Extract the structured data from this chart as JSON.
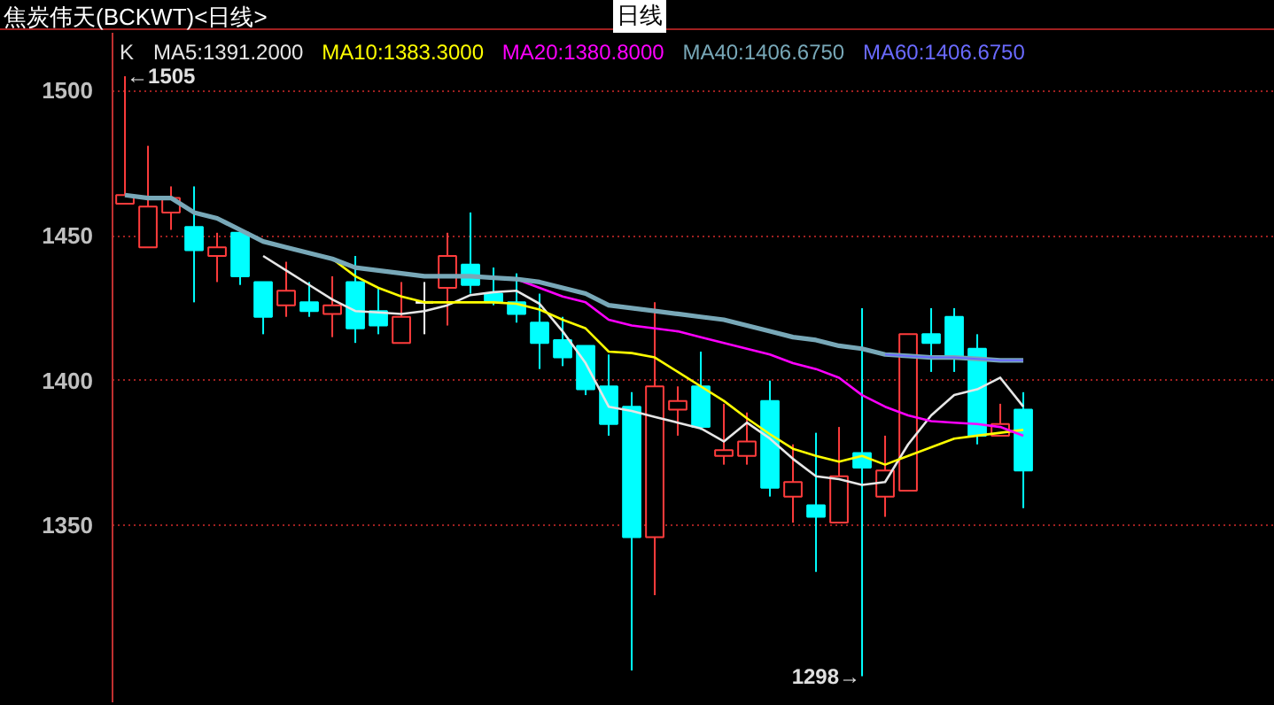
{
  "chart_data": {
    "type": "candlestick",
    "title": "焦炭伟天(BCKWT)<日线>",
    "subtitle": "日线",
    "categories": [
      null,
      null,
      null,
      null,
      null,
      null,
      null,
      null,
      null,
      null,
      null,
      null,
      null,
      null,
      null,
      null,
      null,
      null,
      null,
      null,
      null,
      null,
      null,
      null,
      null,
      null,
      null,
      null,
      null,
      null,
      null,
      null,
      null,
      null,
      null,
      null,
      null,
      null,
      null,
      null
    ],
    "ohlc": [
      [
        1461,
        1505,
        1461,
        1464
      ],
      [
        1446,
        1481,
        1446,
        1460
      ],
      [
        1458,
        1467,
        1452,
        1463
      ],
      [
        1453,
        1467,
        1427,
        1445
      ],
      [
        1443,
        1451,
        1434,
        1446
      ],
      [
        1451,
        1452,
        1433,
        1436
      ],
      [
        1434,
        1434,
        1416,
        1422
      ],
      [
        1426,
        1441,
        1422,
        1431
      ],
      [
        1427,
        1434,
        1422,
        1424
      ],
      [
        1423,
        1436,
        1415,
        1426
      ],
      [
        1434,
        1443,
        1413,
        1418
      ],
      [
        1424,
        1432,
        1416,
        1419
      ],
      [
        1413,
        1434,
        1413,
        1422
      ],
      [
        1427,
        1434,
        1416,
        1427
      ],
      [
        1432,
        1451,
        1419,
        1443
      ],
      [
        1440,
        1458,
        1430,
        1433
      ],
      [
        1430,
        1439,
        1426,
        1427
      ],
      [
        1427,
        1437,
        1420,
        1423
      ],
      [
        1420,
        1430,
        1404,
        1413
      ],
      [
        1414,
        1422,
        1405,
        1408
      ],
      [
        1412,
        1412,
        1395,
        1397
      ],
      [
        1398,
        1409,
        1381,
        1385
      ],
      [
        1391,
        1396,
        1300,
        1346
      ],
      [
        1346,
        1427,
        1326,
        1398
      ],
      [
        1390,
        1398,
        1381,
        1393
      ],
      [
        1398,
        1410,
        1383,
        1384
      ],
      [
        1374,
        1392,
        1371,
        1376
      ],
      [
        1374,
        1389,
        1371,
        1379
      ],
      [
        1393,
        1400,
        1360,
        1363
      ],
      [
        1360,
        1378,
        1351,
        1365
      ],
      [
        1357,
        1382,
        1334,
        1353
      ],
      [
        1351,
        1384,
        1351,
        1367
      ],
      [
        1375,
        1425,
        1298,
        1370
      ],
      [
        1360,
        1381,
        1353,
        1369
      ],
      [
        1362,
        1416,
        1362,
        1416
      ],
      [
        1416,
        1425,
        1403,
        1413
      ],
      [
        1422,
        1425,
        1403,
        1408
      ],
      [
        1411,
        1416,
        1378,
        1381
      ],
      [
        1381,
        1392,
        1381,
        1385
      ],
      [
        1390,
        1396,
        1356,
        1369
      ]
    ],
    "colors": [
      "#ff3c3c",
      "#ff3c3c",
      "#ff3c3c",
      "#00ffff",
      "#ff3c3c",
      "#00ffff",
      "#00ffff",
      "#ff3c3c",
      "#00ffff",
      "#ff3c3c",
      "#00ffff",
      "#00ffff",
      "#ff3c3c",
      "#ffffff",
      "#ff3c3c",
      "#00ffff",
      "#00ffff",
      "#00ffff",
      "#00ffff",
      "#00ffff",
      "#00ffff",
      "#00ffff",
      "#00ffff",
      "#ff3c3c",
      "#ff3c3c",
      "#00ffff",
      "#ff3c3c",
      "#ff3c3c",
      "#00ffff",
      "#ff3c3c",
      "#00ffff",
      "#ff3c3c",
      "#00ffff",
      "#ff3c3c",
      "#ff3c3c",
      "#00ffff",
      "#00ffff",
      "#00ffff",
      "#ff3c3c",
      "#00ffff"
    ],
    "series": [
      {
        "name": "MA5:1391.2000",
        "type": "line",
        "color": "#e6e6e6",
        "values": [
          null,
          null,
          null,
          null,
          null,
          null,
          1443,
          1438,
          1433,
          1428,
          1424,
          1423.5,
          1423,
          1424,
          1426,
          1429.5,
          1430.5,
          1431,
          1426.5,
          1417,
          1406,
          1391,
          1389.5,
          1387.5,
          1385.5,
          1383.5,
          1379,
          1385.5,
          1380,
          1373,
          1367,
          1366,
          1364,
          1365,
          1378,
          1388,
          1395,
          1397,
          1401,
          1391
        ]
      },
      {
        "name": "MA10:1383.3000",
        "type": "line",
        "color": "#ffff00",
        "values": [
          null,
          null,
          null,
          null,
          null,
          null,
          null,
          null,
          null,
          1442,
          1436,
          1432,
          1429,
          1427,
          1427,
          1427,
          1427,
          1426.5,
          1424.5,
          1421,
          1418,
          1410,
          1409.5,
          1408,
          1403,
          1398,
          1393,
          1387,
          1381.5,
          1376.5,
          1374,
          1372,
          1374,
          1371,
          1374,
          1377,
          1380,
          1381,
          1382,
          1383
        ]
      },
      {
        "name": "MA20:1380.8000",
        "type": "line",
        "color": "#ff00ff",
        "values": [
          null,
          null,
          null,
          null,
          null,
          null,
          null,
          null,
          null,
          null,
          null,
          null,
          null,
          null,
          null,
          null,
          null,
          1435,
          1432,
          1429,
          1427,
          1421,
          1419,
          1418,
          1417,
          1415,
          1413,
          1411,
          1409,
          1406,
          1404,
          1401,
          1395,
          1391,
          1388,
          1386,
          1385.5,
          1385,
          1384,
          1381
        ]
      },
      {
        "name": "MA40:1406.6750",
        "type": "line",
        "color": "#78a8b8",
        "values": [
          1464,
          1463,
          1463,
          1458,
          1456,
          1452,
          1448,
          1446,
          1444,
          1442,
          1439,
          1438,
          1437,
          1436,
          1436,
          1436,
          1435.5,
          1435,
          1434,
          1432,
          1430,
          1426,
          1425,
          1424,
          1423,
          1422,
          1421,
          1419,
          1417,
          1415,
          1414,
          1412,
          1411,
          1409,
          1408.5,
          1408,
          1408,
          1407.5,
          1407,
          1407
        ]
      },
      {
        "name": "MA60:1406.6750",
        "type": "line",
        "color": "#6a6aff",
        "values": [
          null,
          null,
          null,
          null,
          null,
          null,
          null,
          null,
          null,
          null,
          null,
          null,
          null,
          null,
          null,
          null,
          null,
          null,
          null,
          null,
          null,
          null,
          null,
          null,
          null,
          null,
          null,
          null,
          null,
          null,
          null,
          null,
          null,
          1409,
          1408.5,
          1408,
          1408,
          1407.5,
          1407,
          1407
        ]
      }
    ],
    "annotations": [
      "K",
      "←1505",
      "1298→"
    ],
    "ylim": [
      1289,
      1520
    ],
    "yticks": [
      1350,
      1400,
      1450,
      1500
    ],
    "grid": "y",
    "legend": "top left",
    "tick_labels": "y"
  }
}
